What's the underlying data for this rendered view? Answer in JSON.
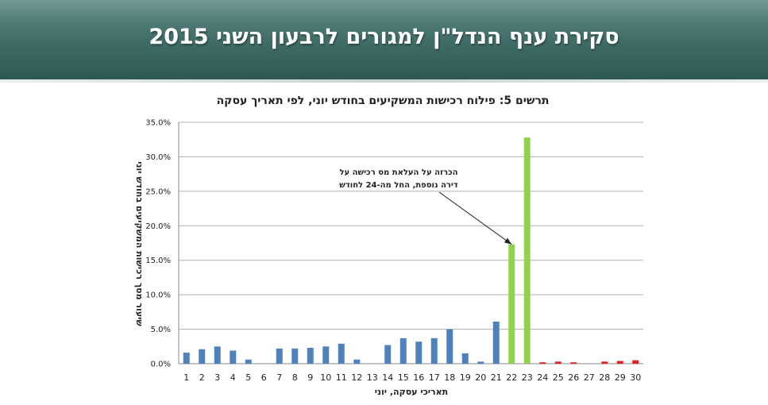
{
  "header": {
    "title": "סקירת ענף הנדל\"ן למגורים לרבעון השני 2015",
    "colors": {
      "top": "#5f8a85",
      "bottom": "#2e5853",
      "text": "#ffffff"
    }
  },
  "chart_data": {
    "type": "bar",
    "title": "תרשים 5: פילוח רכישות המשקיעים בחודש יוני, לפי תאריך עסקה",
    "xlabel": "תאריכי עסקה, יוני",
    "ylabel": "שיעור מסך רכישות המשקיעים בחודש יוני",
    "ylim": [
      0,
      35
    ],
    "y_ticks": [
      "0.0%",
      "5.0%",
      "10.0%",
      "15.0%",
      "20.0%",
      "25.0%",
      "30.0%",
      "35.0%"
    ],
    "grid": true,
    "categories": [
      "1",
      "2",
      "3",
      "4",
      "5",
      "6",
      "7",
      "8",
      "9",
      "10",
      "11",
      "12",
      "13",
      "14",
      "15",
      "16",
      "17",
      "18",
      "19",
      "20",
      "21",
      "22",
      "23",
      "24",
      "25",
      "26",
      "27",
      "28",
      "29",
      "30"
    ],
    "values": [
      1.6,
      2.1,
      2.5,
      1.9,
      0.6,
      0.0,
      2.2,
      2.2,
      2.3,
      2.5,
      2.9,
      0.6,
      0.0,
      2.7,
      3.7,
      3.2,
      3.7,
      5.0,
      1.5,
      0.3,
      6.1,
      17.3,
      32.8,
      0.2,
      0.3,
      0.2,
      0.0,
      0.3,
      0.4,
      0.5
    ],
    "bar_colors": [
      "#4f81bd",
      "#4f81bd",
      "#4f81bd",
      "#4f81bd",
      "#4f81bd",
      "#4f81bd",
      "#4f81bd",
      "#4f81bd",
      "#4f81bd",
      "#4f81bd",
      "#4f81bd",
      "#4f81bd",
      "#4f81bd",
      "#4f81bd",
      "#4f81bd",
      "#4f81bd",
      "#4f81bd",
      "#4f81bd",
      "#4f81bd",
      "#4f81bd",
      "#4f81bd",
      "#92d050",
      "#92d050",
      "#e02020",
      "#e02020",
      "#e02020",
      "#e02020",
      "#e02020",
      "#e02020",
      "#e02020"
    ],
    "annotation": {
      "lines": [
        "הכרזה על העלאת מס רכישה על",
        "דירה נוספת, החל מה-24 לחודש"
      ],
      "points_to_category": "22"
    }
  }
}
